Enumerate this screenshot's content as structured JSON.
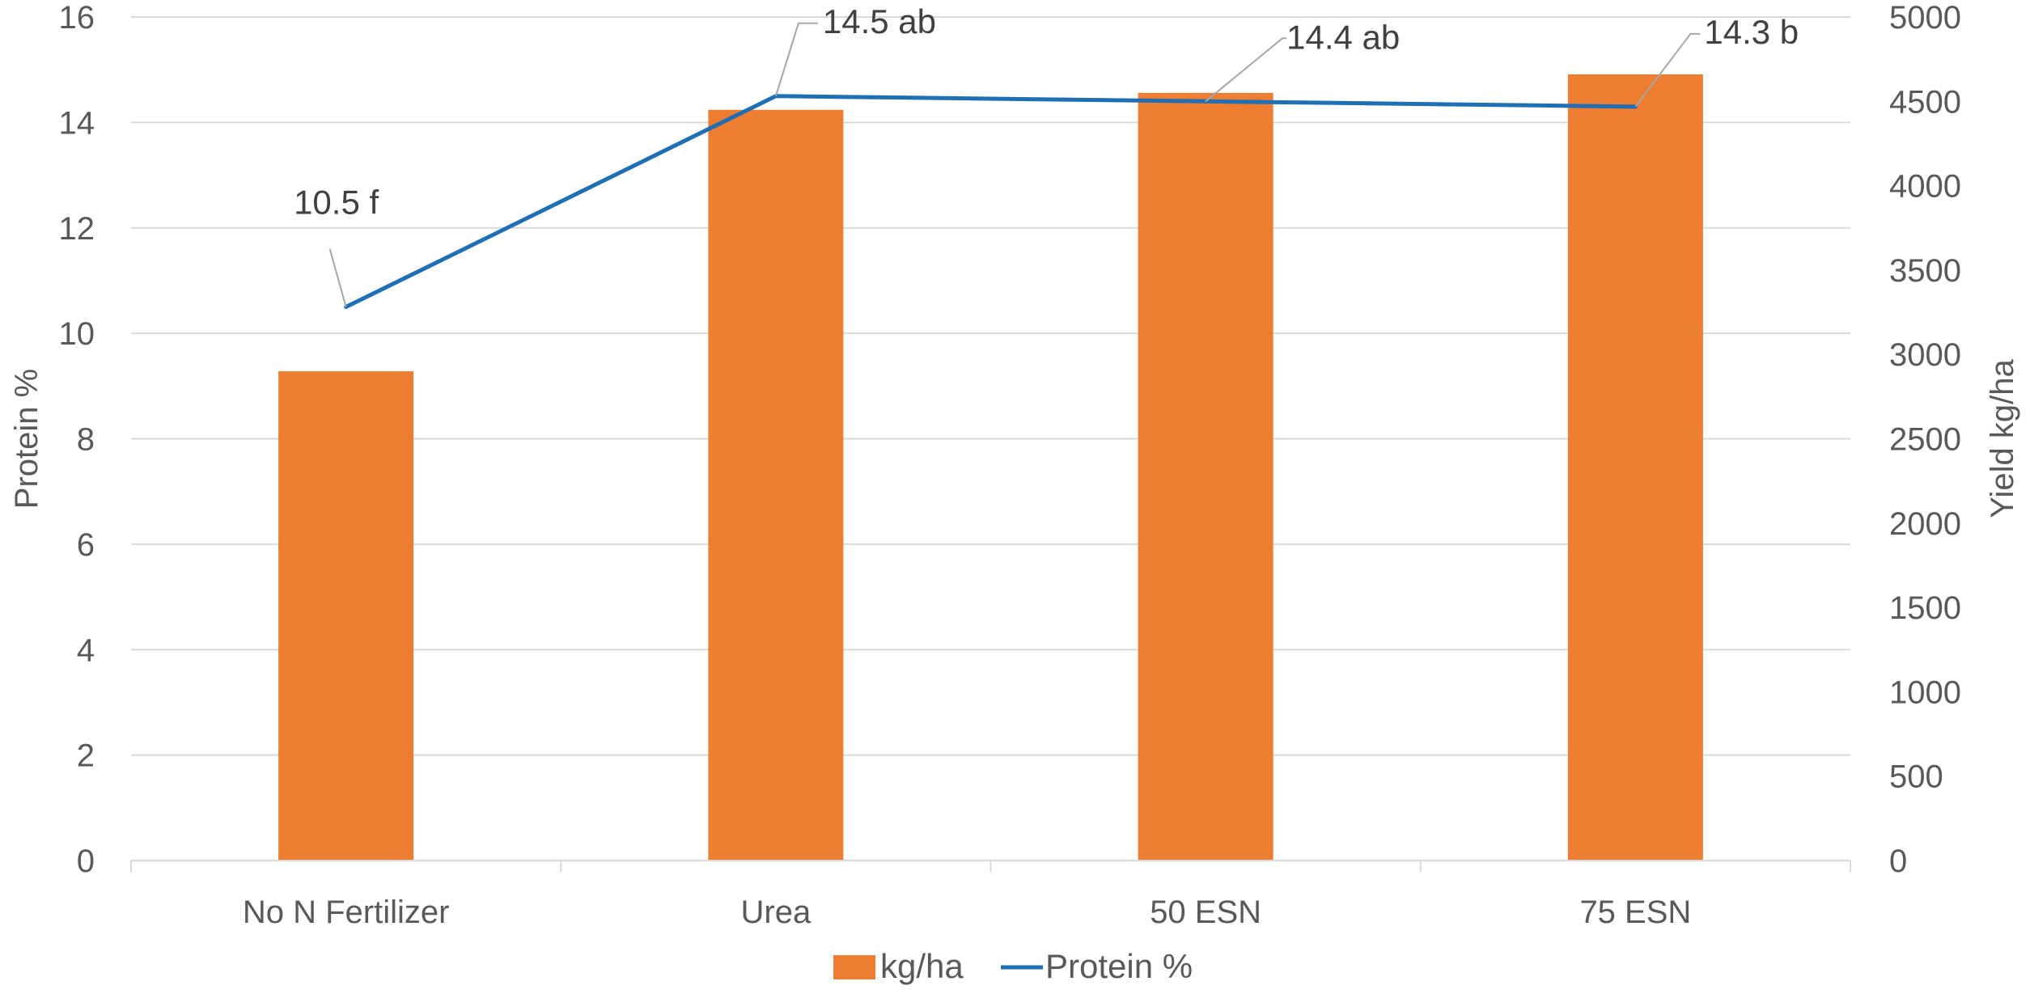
{
  "chart_data": {
    "type": "bar",
    "categories": [
      "No N Fertilizer",
      "Urea",
      "50 ESN",
      "75 ESN"
    ],
    "y_left": {
      "label": "Protein %",
      "min": 0,
      "max": 16,
      "step": 2
    },
    "y_right": {
      "label": "Yield kg/ha",
      "min": 0,
      "max": 5000,
      "step": 500
    },
    "series": [
      {
        "name": "kg/ha",
        "type": "bar",
        "axis": "right",
        "color": "#ED7D31",
        "values": [
          2900,
          4450,
          4550,
          4660
        ]
      },
      {
        "name": "Protein %",
        "type": "line",
        "axis": "left",
        "color": "#1F6FB5",
        "values": [
          10.5,
          14.5,
          14.4,
          14.3
        ],
        "labels": [
          "10.5 f",
          "14.5 ab",
          "14.4 ab",
          "14.3 b"
        ]
      }
    ],
    "grid": true,
    "legend_position": "bottom"
  }
}
